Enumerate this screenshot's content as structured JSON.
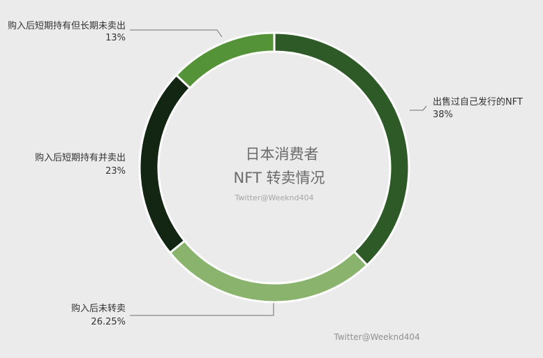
{
  "chart_data": {
    "type": "pie",
    "variant": "donut",
    "title_lines": [
      "日本消费者",
      "NFT 转卖情况"
    ],
    "watermark_center": "Twitter@Weeknd404",
    "watermark_bottom": "Twitter@Weeknd404",
    "slices": [
      {
        "label": "出售过自己发行的NFT",
        "value": 38,
        "value_label": "38%",
        "color": "#2e5a27"
      },
      {
        "label": "购入后未转卖",
        "value": 26.25,
        "value_label": "26.25%",
        "color": "#8ab36e"
      },
      {
        "label": "购入后短期持有并卖出",
        "value": 23,
        "value_label": "23%",
        "color": "#122613"
      },
      {
        "label": "购入后短期持有但长期未卖出",
        "value": 13,
        "value_label": "13%",
        "color": "#559338"
      }
    ],
    "start_angle_deg": 0,
    "direction": "clockwise",
    "legend": "none"
  }
}
